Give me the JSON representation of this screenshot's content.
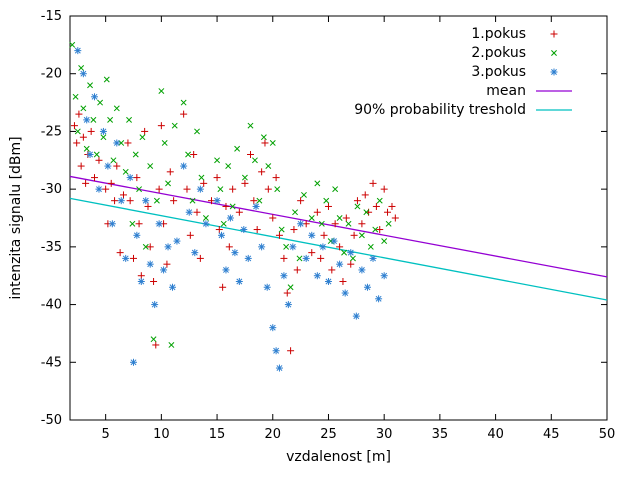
{
  "chart_data": {
    "type": "scatter",
    "title": "",
    "xlabel": "vzdalenost [m]",
    "ylabel": "intenzita signalu [dBm]",
    "xlim": [
      1.8,
      50
    ],
    "ylim": [
      -50,
      -15
    ],
    "xticks": [
      5,
      10,
      15,
      20,
      25,
      30,
      35,
      40,
      45,
      50
    ],
    "yticks": [
      -50,
      -45,
      -40,
      -35,
      -30,
      -25,
      -20,
      -15
    ],
    "grid": false,
    "legend_position": "top-right",
    "series": [
      {
        "name": "1.pokus",
        "marker": "plus",
        "color": "#cc0000",
        "points": [
          [
            2.2,
            -24.5
          ],
          [
            2.4,
            -26
          ],
          [
            2.6,
            -23.5
          ],
          [
            2.8,
            -28
          ],
          [
            3,
            -25.5
          ],
          [
            3.2,
            -29.5
          ],
          [
            3.4,
            -27
          ],
          [
            3.7,
            -25
          ],
          [
            4,
            -29
          ],
          [
            4.4,
            -27.5
          ],
          [
            5,
            -30
          ],
          [
            5.2,
            -33
          ],
          [
            5.5,
            -29.5
          ],
          [
            5.8,
            -31
          ],
          [
            6,
            -28
          ],
          [
            6.3,
            -35.5
          ],
          [
            6.6,
            -30.5
          ],
          [
            7,
            -26
          ],
          [
            7.2,
            -31
          ],
          [
            7.5,
            -36
          ],
          [
            7.8,
            -29
          ],
          [
            8,
            -33
          ],
          [
            8.2,
            -37.5
          ],
          [
            8.5,
            -25
          ],
          [
            8.8,
            -31.5
          ],
          [
            9,
            -35
          ],
          [
            9.3,
            -38
          ],
          [
            9.5,
            -43.5
          ],
          [
            9.8,
            -30
          ],
          [
            10,
            -24.5
          ],
          [
            10.2,
            -33
          ],
          [
            10.5,
            -36.5
          ],
          [
            10.8,
            -28.5
          ],
          [
            11.1,
            -31
          ],
          [
            12,
            -23.5
          ],
          [
            12.3,
            -30
          ],
          [
            12.6,
            -34
          ],
          [
            12.9,
            -27
          ],
          [
            13.2,
            -32
          ],
          [
            13.5,
            -36
          ],
          [
            13.8,
            -29.5
          ],
          [
            14.5,
            -31
          ],
          [
            15,
            -29
          ],
          [
            15.2,
            -33.5
          ],
          [
            15.5,
            -38.5
          ],
          [
            15.8,
            -31.5
          ],
          [
            16.1,
            -35
          ],
          [
            16.4,
            -30
          ],
          [
            17,
            -32
          ],
          [
            17.5,
            -29.5
          ],
          [
            18,
            -27
          ],
          [
            18.3,
            -31
          ],
          [
            18.6,
            -33.5
          ],
          [
            19,
            -28.5
          ],
          [
            19.3,
            -26
          ],
          [
            19.6,
            -30
          ],
          [
            20,
            -32.5
          ],
          [
            20.3,
            -29
          ],
          [
            20.6,
            -34
          ],
          [
            21,
            -36
          ],
          [
            21.3,
            -39
          ],
          [
            21.6,
            -44
          ],
          [
            21.9,
            -33.5
          ],
          [
            22.2,
            -37
          ],
          [
            22.5,
            -31
          ],
          [
            23,
            -33
          ],
          [
            23.5,
            -35.5
          ],
          [
            24,
            -32
          ],
          [
            24.3,
            -36
          ],
          [
            24.6,
            -34
          ],
          [
            25,
            -31.5
          ],
          [
            25.3,
            -37
          ],
          [
            25.6,
            -33
          ],
          [
            26,
            -35
          ],
          [
            26.3,
            -38
          ],
          [
            26.6,
            -32.5
          ],
          [
            27,
            -36.5
          ],
          [
            27.3,
            -34
          ],
          [
            27.6,
            -31
          ],
          [
            28,
            -33
          ],
          [
            28.3,
            -30.5
          ],
          [
            28.6,
            -32
          ],
          [
            29,
            -29.5
          ],
          [
            29.3,
            -31.5
          ],
          [
            29.6,
            -33.5
          ],
          [
            30,
            -30
          ],
          [
            30.3,
            -32
          ],
          [
            30.7,
            -31.5
          ],
          [
            31,
            -32.5
          ]
        ]
      },
      {
        "name": "2.pokus",
        "marker": "cross",
        "color": "#00a000",
        "points": [
          [
            2,
            -17.5
          ],
          [
            2.3,
            -22
          ],
          [
            2.5,
            -25
          ],
          [
            2.8,
            -19.5
          ],
          [
            3,
            -23
          ],
          [
            3.3,
            -26.5
          ],
          [
            3.6,
            -21
          ],
          [
            3.9,
            -24
          ],
          [
            4.2,
            -27
          ],
          [
            4.5,
            -22.5
          ],
          [
            4.8,
            -25.5
          ],
          [
            5.1,
            -20.5
          ],
          [
            5.4,
            -24
          ],
          [
            5.7,
            -27.5
          ],
          [
            6,
            -23
          ],
          [
            6.4,
            -26
          ],
          [
            6.8,
            -28.5
          ],
          [
            7.1,
            -24
          ],
          [
            7.4,
            -33
          ],
          [
            7.7,
            -27
          ],
          [
            8,
            -30
          ],
          [
            8.3,
            -25.5
          ],
          [
            8.6,
            -35
          ],
          [
            9,
            -28
          ],
          [
            9.3,
            -43
          ],
          [
            9.6,
            -31
          ],
          [
            10,
            -21.5
          ],
          [
            10.3,
            -26
          ],
          [
            10.6,
            -29.5
          ],
          [
            10.9,
            -43.5
          ],
          [
            11.2,
            -24.5
          ],
          [
            12,
            -22.5
          ],
          [
            12.4,
            -27
          ],
          [
            12.8,
            -31
          ],
          [
            13.2,
            -25
          ],
          [
            13.6,
            -29
          ],
          [
            14,
            -32.5
          ],
          [
            15,
            -27.5
          ],
          [
            15.3,
            -30
          ],
          [
            15.6,
            -33
          ],
          [
            16,
            -28
          ],
          [
            16.4,
            -31.5
          ],
          [
            16.8,
            -26.5
          ],
          [
            17.5,
            -29
          ],
          [
            18,
            -24.5
          ],
          [
            18.4,
            -27.5
          ],
          [
            18.8,
            -31
          ],
          [
            19.2,
            -25.5
          ],
          [
            19.6,
            -28
          ],
          [
            20,
            -26
          ],
          [
            20.4,
            -30
          ],
          [
            20.8,
            -33.5
          ],
          [
            21.2,
            -35
          ],
          [
            21.6,
            -38.5
          ],
          [
            22,
            -32
          ],
          [
            22.4,
            -36
          ],
          [
            22.8,
            -30.5
          ],
          [
            23.5,
            -32.5
          ],
          [
            24,
            -29.5
          ],
          [
            24.4,
            -33
          ],
          [
            24.8,
            -31
          ],
          [
            25.2,
            -34.5
          ],
          [
            25.6,
            -30
          ],
          [
            26,
            -32.5
          ],
          [
            26.4,
            -35.5
          ],
          [
            26.8,
            -33
          ],
          [
            27.2,
            -36
          ],
          [
            27.6,
            -31.5
          ],
          [
            28,
            -34
          ],
          [
            28.4,
            -32
          ],
          [
            28.8,
            -35
          ],
          [
            29.2,
            -33.5
          ],
          [
            29.6,
            -31
          ],
          [
            30,
            -34.5
          ],
          [
            30.4,
            -33
          ]
        ]
      },
      {
        "name": "3.pokus",
        "marker": "asterisk",
        "color": "#2e7fd0",
        "points": [
          [
            2.5,
            -18
          ],
          [
            3,
            -20
          ],
          [
            3.3,
            -24
          ],
          [
            3.6,
            -27
          ],
          [
            4,
            -22
          ],
          [
            4.4,
            -30
          ],
          [
            4.8,
            -25
          ],
          [
            5.2,
            -28
          ],
          [
            5.6,
            -33
          ],
          [
            6,
            -26
          ],
          [
            6.4,
            -31
          ],
          [
            6.8,
            -36
          ],
          [
            7.2,
            -29
          ],
          [
            7.5,
            -45
          ],
          [
            7.8,
            -34
          ],
          [
            8.2,
            -38
          ],
          [
            8.6,
            -31
          ],
          [
            9,
            -36.5
          ],
          [
            9.4,
            -40
          ],
          [
            9.8,
            -33
          ],
          [
            10.2,
            -37
          ],
          [
            10.6,
            -35
          ],
          [
            11,
            -38.5
          ],
          [
            11.4,
            -34.5
          ],
          [
            12,
            -28
          ],
          [
            12.5,
            -32
          ],
          [
            13,
            -35.5
          ],
          [
            13.5,
            -30
          ],
          [
            14,
            -33
          ],
          [
            15,
            -31
          ],
          [
            15.4,
            -34
          ],
          [
            15.8,
            -37
          ],
          [
            16.2,
            -32.5
          ],
          [
            16.6,
            -35.5
          ],
          [
            17,
            -38
          ],
          [
            17.4,
            -33.5
          ],
          [
            17.8,
            -36
          ],
          [
            18.5,
            -31.5
          ],
          [
            19,
            -35
          ],
          [
            19.5,
            -38.5
          ],
          [
            20,
            -42
          ],
          [
            20.3,
            -44
          ],
          [
            20.6,
            -45.5
          ],
          [
            21,
            -37.5
          ],
          [
            21.4,
            -40
          ],
          [
            21.8,
            -35
          ],
          [
            22.5,
            -33
          ],
          [
            23,
            -36
          ],
          [
            23.5,
            -34
          ],
          [
            24,
            -37.5
          ],
          [
            24.5,
            -35
          ],
          [
            25,
            -38
          ],
          [
            25.5,
            -34.5
          ],
          [
            26,
            -36.5
          ],
          [
            26.5,
            -39
          ],
          [
            27,
            -35.5
          ],
          [
            27.5,
            -41
          ],
          [
            28,
            -37
          ],
          [
            28.5,
            -38.5
          ],
          [
            29,
            -36
          ],
          [
            29.5,
            -39.5
          ],
          [
            30,
            -37.5
          ]
        ]
      }
    ],
    "lines": [
      {
        "name": "mean",
        "color": "#9400d3",
        "x": [
          1.8,
          50
        ],
        "y": [
          -28.9,
          -37.6
        ]
      },
      {
        "name": "90% probability treshold",
        "color": "#00c0c0",
        "x": [
          1.8,
          50
        ],
        "y": [
          -30.8,
          -39.6
        ]
      }
    ]
  }
}
